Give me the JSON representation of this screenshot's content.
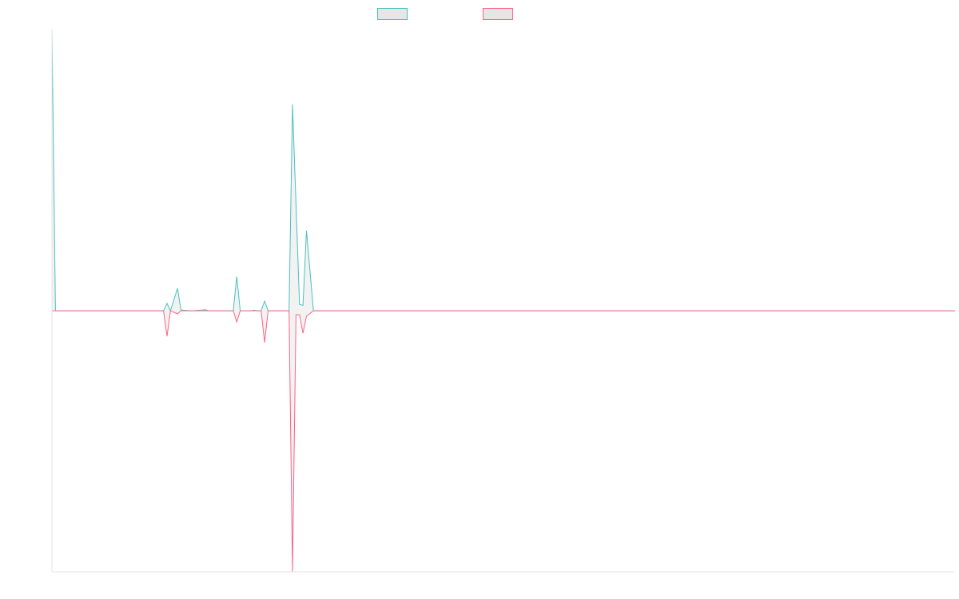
{
  "chart_data": {
    "type": "line",
    "legend_position": "top-center",
    "grid": false,
    "ylim": [
      -100,
      108
    ],
    "y_zero": 0,
    "series": [
      {
        "name": "",
        "color": "#4bc0c0",
        "fill": "#e6e6e6",
        "points": [
          [
            0,
            108
          ],
          [
            1,
            0
          ],
          [
            23,
            0
          ],
          [
            24,
            0
          ],
          [
            32,
            0
          ],
          [
            33,
            2.8
          ],
          [
            34,
            0
          ],
          [
            36,
            8.6
          ],
          [
            37,
            0.3
          ],
          [
            40,
            0
          ],
          [
            44,
            0.4
          ],
          [
            45,
            0
          ],
          [
            52,
            0
          ],
          [
            53,
            13.1
          ],
          [
            54,
            0
          ],
          [
            57,
            0
          ],
          [
            58,
            0.2
          ],
          [
            59,
            0
          ],
          [
            60,
            0
          ],
          [
            61,
            3.7
          ],
          [
            62,
            0
          ],
          [
            68,
            0
          ],
          [
            69,
            79
          ],
          [
            71,
            2.4
          ],
          [
            72,
            2.1
          ],
          [
            73,
            30.7
          ],
          [
            75,
            0
          ],
          [
            259,
            0
          ]
        ]
      },
      {
        "name": "",
        "color": "#ff6384",
        "fill": "#e6e6e6",
        "points": [
          [
            0,
            0
          ],
          [
            1,
            0
          ],
          [
            23,
            0
          ],
          [
            24,
            0
          ],
          [
            32,
            0
          ],
          [
            33,
            -9.8
          ],
          [
            34,
            0
          ],
          [
            36,
            -1.2
          ],
          [
            37,
            0
          ],
          [
            40,
            0
          ],
          [
            52,
            0
          ],
          [
            53,
            -4.3
          ],
          [
            54,
            0
          ],
          [
            59,
            0
          ],
          [
            60,
            0
          ],
          [
            61,
            -12.2
          ],
          [
            62,
            0
          ],
          [
            68,
            0
          ],
          [
            69,
            -100
          ],
          [
            70,
            -1.5
          ],
          [
            71,
            -1.5
          ],
          [
            72,
            -8.6
          ],
          [
            73,
            -2.1
          ],
          [
            75,
            0
          ],
          [
            259,
            0
          ]
        ]
      }
    ]
  }
}
